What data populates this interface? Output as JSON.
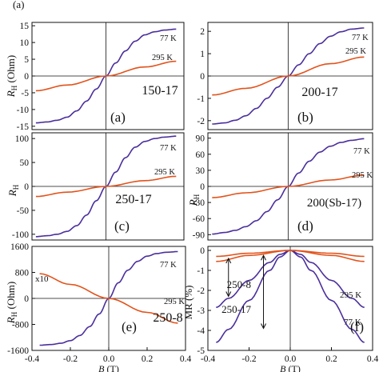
{
  "colors": {
    "blue": "#4b2f9c",
    "red": "#e2531c",
    "axis": "#111111"
  },
  "header_fragment": "(a)",
  "chart_data": [
    {
      "type": "line",
      "panel": "a",
      "panel_label": "(a)",
      "sample_label": "150-17",
      "ylabel": "R_H (Ohm)",
      "xlabel": "",
      "xlim": [
        -0.38,
        0.4
      ],
      "ylim": [
        -16,
        16
      ],
      "x_ticks": [],
      "y_ticks": [
        -15,
        -10,
        -5,
        0,
        5,
        10,
        15
      ],
      "series": [
        {
          "name": "77 K",
          "color": "#4b2f9c",
          "x": [
            -0.36,
            -0.3,
            -0.25,
            -0.2,
            -0.15,
            -0.1,
            -0.05,
            0,
            0.05,
            0.1,
            0.15,
            0.2,
            0.25,
            0.3,
            0.36
          ],
          "y": [
            -14.0,
            -13.7,
            -13.2,
            -12.3,
            -10.4,
            -7.5,
            -3.9,
            0,
            3.9,
            7.5,
            10.4,
            12.3,
            13.2,
            13.7,
            14.0
          ]
        },
        {
          "name": "295 K",
          "color": "#e2531c",
          "x": [
            -0.36,
            -0.2,
            0,
            0.2,
            0.36
          ],
          "y": [
            -4.4,
            -2.7,
            0,
            2.7,
            4.4
          ]
        }
      ]
    },
    {
      "type": "line",
      "panel": "b",
      "panel_label": "(b)",
      "sample_label": "200-17",
      "ylabel": "",
      "xlabel": "",
      "xlim": [
        -0.38,
        0.4
      ],
      "ylim": [
        -2.4,
        2.4
      ],
      "x_ticks": [],
      "y_ticks": [
        -2,
        -1,
        0,
        1,
        2
      ],
      "series": [
        {
          "name": "77 K",
          "color": "#4b2f9c",
          "x": [
            -0.36,
            -0.3,
            -0.25,
            -0.2,
            -0.15,
            -0.1,
            -0.05,
            0,
            0.05,
            0.1,
            0.15,
            0.2,
            0.25,
            0.3,
            0.36
          ],
          "y": [
            -2.15,
            -2.1,
            -1.98,
            -1.78,
            -1.45,
            -1.0,
            -0.5,
            0,
            0.5,
            1.0,
            1.45,
            1.78,
            1.98,
            2.1,
            2.15
          ]
        },
        {
          "name": "295 K",
          "color": "#e2531c",
          "x": [
            -0.36,
            -0.2,
            0,
            0.2,
            0.36
          ],
          "y": [
            -0.85,
            -0.55,
            0,
            0.55,
            0.85
          ]
        }
      ]
    },
    {
      "type": "line",
      "panel": "c",
      "panel_label": "(c)",
      "sample_label": "250-17",
      "ylabel": "R_H",
      "xlabel": "",
      "xlim": [
        -0.38,
        0.4
      ],
      "ylim": [
        -112,
        112
      ],
      "x_ticks": [],
      "y_ticks": [
        -100,
        -50,
        0,
        50,
        100
      ],
      "series": [
        {
          "name": "77 K",
          "color": "#4b2f9c",
          "x": [
            -0.36,
            -0.3,
            -0.25,
            -0.2,
            -0.15,
            -0.1,
            -0.05,
            0,
            0.05,
            0.1,
            0.15,
            0.2,
            0.25,
            0.3,
            0.36
          ],
          "y": [
            -105,
            -103,
            -100,
            -94,
            -82,
            -60,
            -30,
            0,
            30,
            60,
            82,
            94,
            100,
            103,
            105
          ]
        },
        {
          "name": "295 K",
          "color": "#e2531c",
          "x": [
            -0.36,
            -0.2,
            0,
            0.2,
            0.36
          ],
          "y": [
            -21,
            -12,
            0,
            12,
            21
          ]
        }
      ]
    },
    {
      "type": "line",
      "panel": "d",
      "panel_label": "(d)",
      "sample_label": "200(Sb-17)",
      "ylabel": "R_H",
      "xlabel": "",
      "xlim": [
        -0.38,
        0.4
      ],
      "ylim": [
        -100,
        100
      ],
      "x_ticks": [],
      "y_ticks": [
        -90,
        -60,
        -30,
        0,
        30,
        60,
        90
      ],
      "series": [
        {
          "name": "77 K",
          "color": "#4b2f9c",
          "x": [
            -0.36,
            -0.3,
            -0.25,
            -0.2,
            -0.15,
            -0.1,
            -0.05,
            0,
            0.05,
            0.1,
            0.15,
            0.2,
            0.25,
            0.3,
            0.36
          ],
          "y": [
            -89,
            -86,
            -82,
            -75,
            -64,
            -47,
            -25,
            0,
            25,
            47,
            64,
            75,
            82,
            86,
            89
          ]
        },
        {
          "name": "295 K",
          "color": "#e2531c",
          "x": [
            -0.36,
            -0.2,
            0,
            0.2,
            0.36
          ],
          "y": [
            -21,
            -12,
            0,
            12,
            21
          ]
        }
      ]
    },
    {
      "type": "line",
      "panel": "e",
      "panel_label": "(e)",
      "sample_label": "250-8",
      "annotation": "x10",
      "ylabel": "R_H (Ohm)",
      "xlabel": "B (T)",
      "xlim": [
        -0.4,
        0.4
      ],
      "ylim": [
        -1600,
        1600
      ],
      "x_ticks": [
        "-0.4",
        "-0.2",
        "0.0",
        "0.2",
        "0.4"
      ],
      "y_ticks": [
        "1600",
        "800",
        "0",
        "-800",
        "-1600"
      ],
      "y_tick_values": [
        1600,
        800,
        0,
        -800,
        -1600
      ],
      "series": [
        {
          "name": "77 K",
          "color": "#4b2f9c",
          "x": [
            -0.36,
            -0.3,
            -0.25,
            -0.2,
            -0.15,
            -0.1,
            -0.05,
            0,
            0.05,
            0.1,
            0.15,
            0.2,
            0.25,
            0.3,
            0.36
          ],
          "y": [
            -1440,
            -1420,
            -1380,
            -1300,
            -1140,
            -870,
            -480,
            0,
            480,
            870,
            1140,
            1300,
            1380,
            1420,
            1440
          ]
        },
        {
          "name": "295 K",
          "color": "#e2531c",
          "x": [
            -0.36,
            -0.2,
            0,
            0.2,
            0.36
          ],
          "y": [
            760,
            430,
            0,
            -430,
            -760
          ]
        }
      ]
    },
    {
      "type": "line",
      "panel": "f",
      "panel_label": "(f)",
      "ylabel": "MR (%)",
      "xlabel": "B (T)",
      "xlim": [
        -0.4,
        0.4
      ],
      "ylim": [
        -5,
        0.2
      ],
      "x_ticks": [
        "-0.4",
        "-0.2",
        "0.0",
        "0.2",
        "0.4"
      ],
      "y_ticks": [
        "0",
        "-1",
        "-2",
        "-3",
        "-4",
        "-5"
      ],
      "y_tick_values": [
        0,
        -1,
        -2,
        -3,
        -4,
        -5
      ],
      "labels": {
        "upper": "250-8",
        "lower": "250-17",
        "t_warm": "295 K",
        "t_cold": "77 K"
      },
      "series": [
        {
          "name": "250-8, 77 K",
          "color": "#4b2f9c",
          "x": [
            -0.36,
            -0.3,
            -0.2,
            -0.1,
            -0.05,
            0,
            0.05,
            0.1,
            0.2,
            0.3,
            0.36
          ],
          "y": [
            -2.85,
            -2.4,
            -1.5,
            -0.6,
            -0.2,
            0,
            -0.2,
            -0.6,
            -1.5,
            -2.4,
            -2.85
          ]
        },
        {
          "name": "250-17, 77 K",
          "color": "#4b2f9c",
          "x": [
            -0.36,
            -0.3,
            -0.2,
            -0.1,
            -0.05,
            0,
            0.05,
            0.1,
            0.2,
            0.3,
            0.36
          ],
          "y": [
            -4.6,
            -3.95,
            -2.5,
            -1.0,
            -0.33,
            0,
            -0.33,
            -1.0,
            -2.5,
            -3.95,
            -4.6
          ]
        },
        {
          "name": "250-8, 295 K",
          "color": "#e2531c",
          "x": [
            -0.36,
            -0.2,
            0,
            0.2,
            0.36
          ],
          "y": [
            -0.55,
            -0.25,
            0,
            -0.25,
            -0.55
          ]
        },
        {
          "name": "250-17, 295 K",
          "color": "#e2531c",
          "x": [
            -0.36,
            -0.2,
            0,
            0.2,
            0.36
          ],
          "y": [
            -0.3,
            -0.14,
            0,
            -0.14,
            -0.3
          ]
        }
      ]
    }
  ]
}
